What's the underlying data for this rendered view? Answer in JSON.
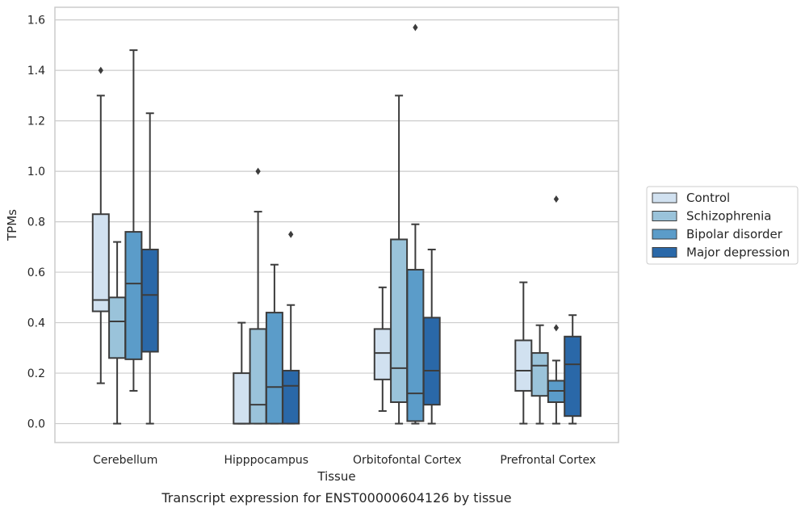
{
  "chart_data": {
    "type": "box",
    "title": "",
    "caption": "Transcript expression for ENST00000604126 by tissue",
    "xlabel": "Tissue",
    "ylabel": "TPMs",
    "ylim": [
      -0.075,
      1.65
    ],
    "yticks": [
      0.0,
      0.2,
      0.4,
      0.6,
      0.8,
      1.0,
      1.2,
      1.4,
      1.6
    ],
    "ytick_labels": [
      "0.0",
      "0.2",
      "0.4",
      "0.6",
      "0.8",
      "1.0",
      "1.2",
      "1.4",
      "1.6"
    ],
    "grid": "horizontal",
    "legend_position": "right",
    "categories": [
      "Cerebellum",
      "Hipppocampus",
      "Orbitofontal Cortex",
      "Prefrontal Cortex"
    ],
    "series": [
      {
        "name": "Control",
        "color": "#d1e1f0",
        "boxes": [
          {
            "whislo": 0.16,
            "q1": 0.445,
            "med": 0.49,
            "q3": 0.83,
            "whishi": 1.3,
            "fliers": [
              1.4
            ]
          },
          {
            "whislo": 0.0,
            "q1": 0.0,
            "med": 0.0,
            "q3": 0.2,
            "whishi": 0.4,
            "fliers": []
          },
          {
            "whislo": 0.05,
            "q1": 0.175,
            "med": 0.28,
            "q3": 0.375,
            "whishi": 0.54,
            "fliers": []
          },
          {
            "whislo": 0.0,
            "q1": 0.13,
            "med": 0.21,
            "q3": 0.33,
            "whishi": 0.56,
            "fliers": []
          }
        ]
      },
      {
        "name": "Schizophrenia",
        "color": "#9ac3da",
        "boxes": [
          {
            "whislo": 0.0,
            "q1": 0.26,
            "med": 0.405,
            "q3": 0.5,
            "whishi": 0.72,
            "fliers": []
          },
          {
            "whislo": 0.0,
            "q1": 0.0,
            "med": 0.075,
            "q3": 0.375,
            "whishi": 0.84,
            "fliers": [
              1.0
            ]
          },
          {
            "whislo": 0.0,
            "q1": 0.085,
            "med": 0.22,
            "q3": 0.73,
            "whishi": 1.3,
            "fliers": []
          },
          {
            "whislo": 0.0,
            "q1": 0.11,
            "med": 0.23,
            "q3": 0.28,
            "whishi": 0.39,
            "fliers": []
          }
        ]
      },
      {
        "name": "Bipolar disorder",
        "color": "#5b9cc9",
        "boxes": [
          {
            "whislo": 0.13,
            "q1": 0.255,
            "med": 0.555,
            "q3": 0.76,
            "whishi": 1.48,
            "fliers": []
          },
          {
            "whislo": 0.0,
            "q1": 0.0,
            "med": 0.145,
            "q3": 0.44,
            "whishi": 0.63,
            "fliers": []
          },
          {
            "whislo": 0.0,
            "q1": 0.01,
            "med": 0.12,
            "q3": 0.61,
            "whishi": 0.79,
            "fliers": [
              1.57
            ]
          },
          {
            "whislo": 0.0,
            "q1": 0.085,
            "med": 0.13,
            "q3": 0.17,
            "whishi": 0.25,
            "fliers": [
              0.38,
              0.89
            ]
          }
        ]
      },
      {
        "name": "Major depression",
        "color": "#2a68a8",
        "boxes": [
          {
            "whislo": 0.0,
            "q1": 0.285,
            "med": 0.51,
            "q3": 0.69,
            "whishi": 1.23,
            "fliers": []
          },
          {
            "whislo": 0.0,
            "q1": 0.0,
            "med": 0.15,
            "q3": 0.21,
            "whishi": 0.47,
            "fliers": [
              0.75
            ]
          },
          {
            "whislo": 0.0,
            "q1": 0.075,
            "med": 0.21,
            "q3": 0.42,
            "whishi": 0.69,
            "fliers": []
          },
          {
            "whislo": 0.0,
            "q1": 0.03,
            "med": 0.235,
            "q3": 0.345,
            "whishi": 0.43,
            "fliers": []
          }
        ]
      }
    ]
  }
}
